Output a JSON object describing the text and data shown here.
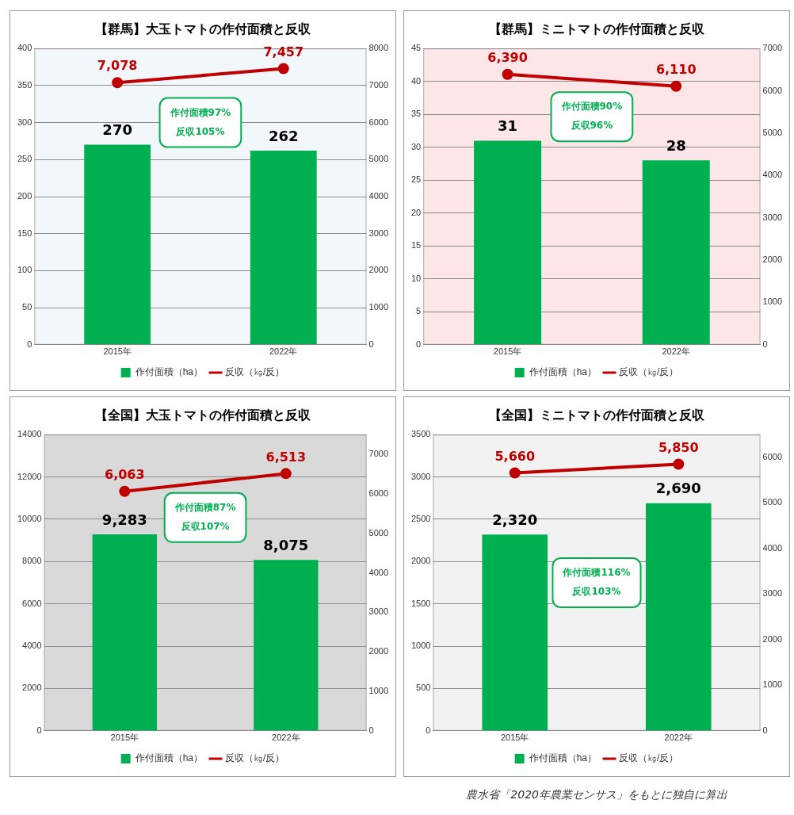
{
  "chart_data": [
    {
      "type": "bar",
      "title": "【群馬】大玉トマトの作付面積と反収",
      "categories": [
        "2015年",
        "2022年"
      ],
      "series": [
        {
          "name": "作付面積（ha）",
          "color": "#00b050",
          "values": [
            270,
            262
          ],
          "value_labels": [
            "270",
            "262"
          ]
        },
        {
          "name": "反収（㎏/反）",
          "type": "line",
          "axis": "y2",
          "color": "#c00000",
          "marker": "circle",
          "values": [
            7078,
            7457
          ],
          "value_labels": [
            "7,078",
            "7,457"
          ]
        }
      ],
      "ylim": [
        0,
        400
      ],
      "yticks": [
        0,
        50,
        100,
        150,
        200,
        250,
        300,
        350,
        400
      ],
      "y2lim": [
        0,
        8000
      ],
      "y2ticks": [
        0,
        1000,
        2000,
        3000,
        4000,
        5000,
        6000,
        7000,
        8000
      ],
      "grid": "y",
      "legend": "bottom",
      "annotations": [
        "作付面積97%",
        "反収105%"
      ]
    },
    {
      "type": "bar",
      "title": "【群馬】ミニトマトの作付面積と反収",
      "categories": [
        "2015年",
        "2022年"
      ],
      "series": [
        {
          "name": "作付面積（ha）",
          "color": "#00b050",
          "values": [
            31,
            28
          ],
          "value_labels": [
            "31",
            "28"
          ]
        },
        {
          "name": "反収（㎏/反）",
          "type": "line",
          "axis": "y2",
          "color": "#c00000",
          "marker": "circle",
          "values": [
            6390,
            6110
          ],
          "value_labels": [
            "6,390",
            "6,110"
          ]
        }
      ],
      "ylim": [
        0,
        45
      ],
      "yticks": [
        0,
        5,
        10,
        15,
        20,
        25,
        30,
        35,
        40,
        45
      ],
      "y2lim": [
        0,
        7000
      ],
      "y2ticks": [
        0,
        1000,
        2000,
        3000,
        4000,
        5000,
        6000,
        7000
      ],
      "grid": "y",
      "legend": "bottom",
      "annotations": [
        "作付面積90%",
        "反収96%"
      ]
    },
    {
      "type": "bar",
      "title": "【全国】大玉トマトの作付面積と反収",
      "categories": [
        "2015年",
        "2022年"
      ],
      "series": [
        {
          "name": "作付面積（ha）",
          "color": "#00b050",
          "values": [
            9283,
            8075
          ],
          "value_labels": [
            "9,283",
            "8,075"
          ]
        },
        {
          "name": "反収（㎏/反）",
          "type": "line",
          "axis": "y2",
          "color": "#c00000",
          "marker": "circle",
          "values": [
            6063,
            6513
          ],
          "value_labels": [
            "6,063",
            "6,513"
          ]
        }
      ],
      "ylim": [
        0,
        14000
      ],
      "yticks": [
        0,
        2000,
        4000,
        6000,
        8000,
        10000,
        12000,
        14000
      ],
      "y2lim": [
        0,
        7500
      ],
      "y2ticks": [
        0,
        1000,
        2000,
        3000,
        4000,
        5000,
        6000,
        7000
      ],
      "grid": "y",
      "legend": "bottom",
      "annotations": [
        "作付面積87%",
        "反収107%"
      ]
    },
    {
      "type": "bar",
      "title": "【全国】ミニトマトの作付面積と反収",
      "categories": [
        "2015年",
        "2022年"
      ],
      "series": [
        {
          "name": "作付面積（ha）",
          "color": "#00b050",
          "values": [
            2320,
            2690
          ],
          "value_labels": [
            "2,320",
            "2,690"
          ]
        },
        {
          "name": "反収（㎏/反）",
          "type": "line",
          "axis": "y2",
          "color": "#c00000",
          "marker": "circle",
          "values": [
            5660,
            5850
          ],
          "value_labels": [
            "5,660",
            "5,850"
          ]
        }
      ],
      "ylim": [
        0,
        3500
      ],
      "yticks": [
        0,
        500,
        1000,
        1500,
        2000,
        2500,
        3000,
        3500
      ],
      "y2lim": [
        0,
        6500
      ],
      "y2ticks": [
        0,
        1000,
        2000,
        3000,
        4000,
        5000,
        6000
      ],
      "grid": "y",
      "legend": "bottom",
      "annotations": [
        "作付面積116%",
        "反収103%",
        "農水省「2020年農業センサス」をもとに独自に算出"
      ]
    }
  ]
}
